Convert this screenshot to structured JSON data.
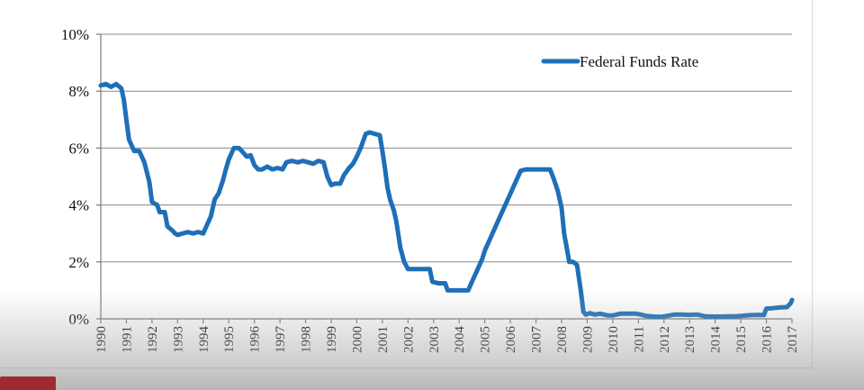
{
  "chart_data": {
    "type": "line",
    "title": "",
    "xlabel": "",
    "ylabel": "",
    "xlim": [
      1990,
      2017
    ],
    "ylim": [
      0,
      10
    ],
    "y_ticks": [
      {
        "v": 0,
        "label": "0%"
      },
      {
        "v": 2,
        "label": "2%"
      },
      {
        "v": 4,
        "label": "4%"
      },
      {
        "v": 6,
        "label": "6%"
      },
      {
        "v": 8,
        "label": "8%"
      },
      {
        "v": 10,
        "label": "10%"
      }
    ],
    "x_ticks": [
      "1990",
      "1991",
      "1992",
      "1993",
      "1994",
      "1995",
      "1996",
      "1997",
      "1998",
      "1999",
      "2000",
      "2001",
      "2002",
      "2003",
      "2004",
      "2005",
      "2006",
      "2007",
      "2008",
      "2009",
      "2010",
      "2011",
      "2012",
      "2013",
      "2014",
      "2015",
      "2016",
      "2017"
    ],
    "grid": "horizontal",
    "legend_position": "top-right",
    "series": [
      {
        "name": "Federal Funds Rate",
        "color": "#1f6fb8",
        "points": [
          [
            1990.0,
            8.2
          ],
          [
            1990.2,
            8.25
          ],
          [
            1990.4,
            8.15
          ],
          [
            1990.6,
            8.25
          ],
          [
            1990.8,
            8.1
          ],
          [
            1990.9,
            7.7
          ],
          [
            1991.0,
            7.0
          ],
          [
            1991.1,
            6.3
          ],
          [
            1991.3,
            5.9
          ],
          [
            1991.5,
            5.9
          ],
          [
            1991.7,
            5.5
          ],
          [
            1991.9,
            4.8
          ],
          [
            1992.0,
            4.1
          ],
          [
            1992.2,
            4.0
          ],
          [
            1992.3,
            3.75
          ],
          [
            1992.5,
            3.75
          ],
          [
            1992.6,
            3.25
          ],
          [
            1992.8,
            3.1
          ],
          [
            1992.9,
            3.0
          ],
          [
            1993.0,
            2.95
          ],
          [
            1993.2,
            3.0
          ],
          [
            1993.4,
            3.05
          ],
          [
            1993.6,
            3.0
          ],
          [
            1993.8,
            3.05
          ],
          [
            1994.0,
            3.0
          ],
          [
            1994.15,
            3.3
          ],
          [
            1994.3,
            3.6
          ],
          [
            1994.45,
            4.2
          ],
          [
            1994.6,
            4.4
          ],
          [
            1994.75,
            4.8
          ],
          [
            1994.9,
            5.3
          ],
          [
            1995.0,
            5.6
          ],
          [
            1995.2,
            6.0
          ],
          [
            1995.4,
            6.0
          ],
          [
            1995.55,
            5.85
          ],
          [
            1995.7,
            5.7
          ],
          [
            1995.85,
            5.75
          ],
          [
            1996.0,
            5.4
          ],
          [
            1996.15,
            5.25
          ],
          [
            1996.3,
            5.25
          ],
          [
            1996.5,
            5.35
          ],
          [
            1996.7,
            5.25
          ],
          [
            1996.9,
            5.3
          ],
          [
            1997.1,
            5.25
          ],
          [
            1997.25,
            5.5
          ],
          [
            1997.45,
            5.55
          ],
          [
            1997.7,
            5.5
          ],
          [
            1997.9,
            5.55
          ],
          [
            1998.1,
            5.5
          ],
          [
            1998.3,
            5.45
          ],
          [
            1998.5,
            5.55
          ],
          [
            1998.7,
            5.5
          ],
          [
            1998.85,
            5.0
          ],
          [
            1999.0,
            4.7
          ],
          [
            1999.15,
            4.75
          ],
          [
            1999.35,
            4.75
          ],
          [
            1999.5,
            5.05
          ],
          [
            1999.7,
            5.3
          ],
          [
            1999.85,
            5.45
          ],
          [
            2000.0,
            5.7
          ],
          [
            2000.15,
            6.0
          ],
          [
            2000.35,
            6.5
          ],
          [
            2000.5,
            6.55
          ],
          [
            2000.7,
            6.5
          ],
          [
            2000.9,
            6.45
          ],
          [
            2001.0,
            5.9
          ],
          [
            2001.1,
            5.3
          ],
          [
            2001.2,
            4.6
          ],
          [
            2001.3,
            4.2
          ],
          [
            2001.45,
            3.8
          ],
          [
            2001.55,
            3.4
          ],
          [
            2001.7,
            2.5
          ],
          [
            2001.85,
            2.0
          ],
          [
            2002.0,
            1.75
          ],
          [
            2002.3,
            1.75
          ],
          [
            2002.6,
            1.75
          ],
          [
            2002.85,
            1.75
          ],
          [
            2002.95,
            1.3
          ],
          [
            2003.2,
            1.25
          ],
          [
            2003.45,
            1.25
          ],
          [
            2003.55,
            1.0
          ],
          [
            2003.8,
            1.0
          ],
          [
            2004.1,
            1.0
          ],
          [
            2004.35,
            1.0
          ],
          [
            2004.5,
            1.3
          ],
          [
            2004.7,
            1.7
          ],
          [
            2004.9,
            2.1
          ],
          [
            2005.0,
            2.4
          ],
          [
            2005.2,
            2.8
          ],
          [
            2005.4,
            3.2
          ],
          [
            2005.6,
            3.6
          ],
          [
            2005.8,
            4.0
          ],
          [
            2006.0,
            4.4
          ],
          [
            2006.2,
            4.8
          ],
          [
            2006.4,
            5.2
          ],
          [
            2006.6,
            5.25
          ],
          [
            2006.8,
            5.25
          ],
          [
            2007.0,
            5.25
          ],
          [
            2007.3,
            5.25
          ],
          [
            2007.55,
            5.25
          ],
          [
            2007.7,
            4.9
          ],
          [
            2007.85,
            4.5
          ],
          [
            2008.0,
            3.9
          ],
          [
            2008.1,
            3.0
          ],
          [
            2008.2,
            2.5
          ],
          [
            2008.3,
            2.0
          ],
          [
            2008.45,
            2.0
          ],
          [
            2008.6,
            1.9
          ],
          [
            2008.75,
            1.0
          ],
          [
            2008.85,
            0.25
          ],
          [
            2008.95,
            0.15
          ],
          [
            2009.1,
            0.2
          ],
          [
            2009.3,
            0.15
          ],
          [
            2009.5,
            0.18
          ],
          [
            2009.8,
            0.12
          ],
          [
            2010.0,
            0.12
          ],
          [
            2010.3,
            0.18
          ],
          [
            2010.6,
            0.18
          ],
          [
            2010.9,
            0.18
          ],
          [
            2011.1,
            0.15
          ],
          [
            2011.3,
            0.1
          ],
          [
            2011.6,
            0.08
          ],
          [
            2011.9,
            0.07
          ],
          [
            2012.1,
            0.1
          ],
          [
            2012.4,
            0.15
          ],
          [
            2012.7,
            0.15
          ],
          [
            2013.0,
            0.14
          ],
          [
            2013.3,
            0.15
          ],
          [
            2013.6,
            0.09
          ],
          [
            2013.9,
            0.08
          ],
          [
            2014.2,
            0.08
          ],
          [
            2014.5,
            0.09
          ],
          [
            2014.8,
            0.09
          ],
          [
            2015.1,
            0.11
          ],
          [
            2015.4,
            0.13
          ],
          [
            2015.7,
            0.14
          ],
          [
            2015.9,
            0.13
          ],
          [
            2016.0,
            0.36
          ],
          [
            2016.2,
            0.37
          ],
          [
            2016.5,
            0.4
          ],
          [
            2016.8,
            0.41
          ],
          [
            2016.95,
            0.55
          ],
          [
            2017.0,
            0.66
          ]
        ]
      }
    ]
  }
}
